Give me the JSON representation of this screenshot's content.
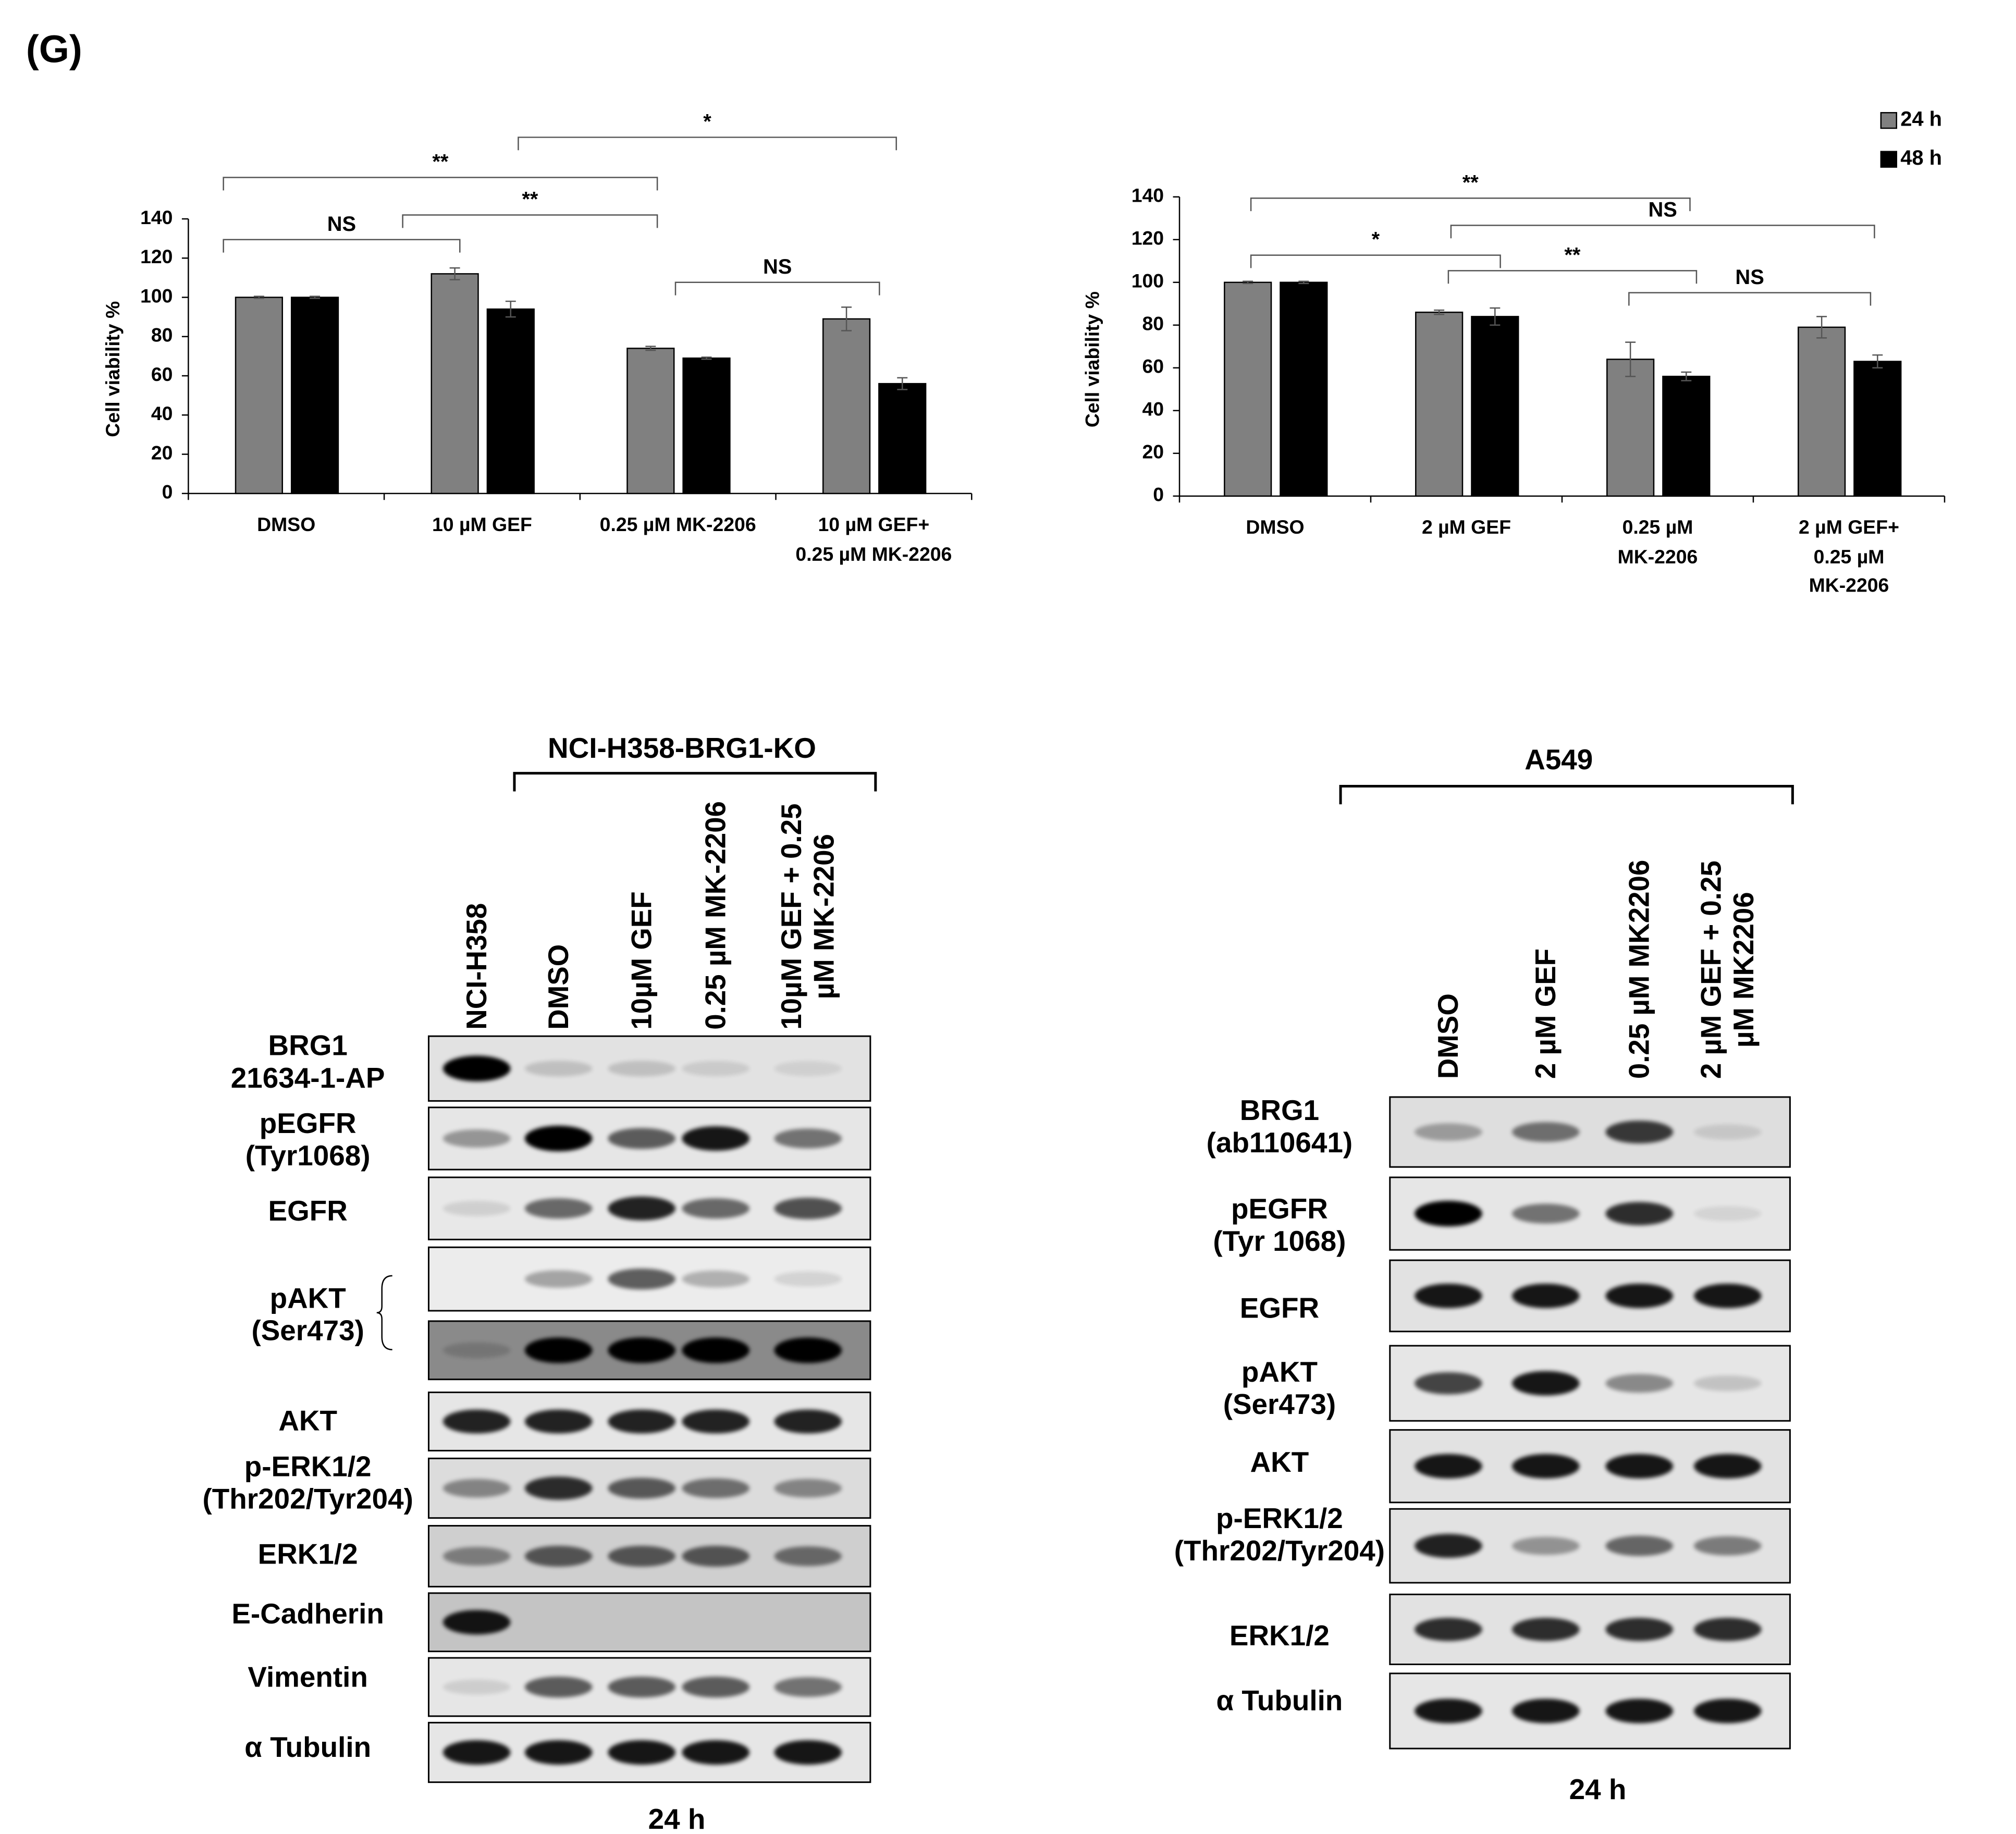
{
  "panel_label": "(G)",
  "chart_data": [
    {
      "type": "bar",
      "y_label": "Cell viability %",
      "categories": [
        "DMSO",
        "10 µM GEF",
        "0.25 µM MK-2206",
        "10 µM GEF+\n0.25 µM MK-2206"
      ],
      "series": [
        {
          "color": "#808080",
          "values": [
            100,
            112,
            74,
            89
          ],
          "errors": [
            0.5,
            3,
            1,
            6
          ]
        },
        {
          "color": "#000000",
          "values": [
            100,
            94,
            69,
            56
          ],
          "errors": [
            0.5,
            4,
            0.5,
            3
          ]
        }
      ],
      "ylim": [
        0,
        140
      ],
      "yticks": [
        0,
        20,
        40,
        60,
        80,
        100,
        120,
        140
      ],
      "legend": false,
      "annotations": [
        "**",
        "*",
        "NS",
        "**",
        "NS"
      ]
    },
    {
      "type": "bar",
      "y_label": "Cell viability %",
      "categories": [
        "DMSO",
        "2 µM GEF",
        "0.25 µM\nMK-2206",
        "2 µM GEF+\n0.25 µM\nMK-2206"
      ],
      "series": [
        {
          "name": "24 h",
          "color": "#808080",
          "values": [
            100,
            86,
            64,
            79
          ],
          "errors": [
            0.5,
            1,
            8,
            5
          ]
        },
        {
          "name": "48 h",
          "color": "#000000",
          "values": [
            100,
            84,
            56,
            63
          ],
          "errors": [
            0.5,
            4,
            2,
            3
          ]
        }
      ],
      "ylim": [
        0,
        140
      ],
      "yticks": [
        0,
        20,
        40,
        60,
        80,
        100,
        120,
        140
      ],
      "legend": "top-right",
      "annotations": [
        "**",
        "NS",
        "*",
        "**",
        "NS"
      ]
    }
  ],
  "blots": [
    {
      "title": "NCI-H358-BRG1-KO",
      "lanes": [
        "NCI-H358",
        "DMSO",
        "10µM GEF",
        "0.25 µM MK-2206",
        "10µM GEF + 0.25\nµM MK-2206"
      ],
      "rows": [
        "BRG1\n21634-1-AP",
        "pEGFR\n(Tyr1068)",
        "EGFR",
        "pAKT\n(Ser473)",
        "AKT",
        "p-ERK1/2\n(Thr202/Tyr204)",
        "ERK1/2",
        "E-Cadherin",
        "Vimentin",
        "α Tubulin"
      ],
      "time": "24 h"
    },
    {
      "title": "A549",
      "lanes": [
        "DMSO",
        "2 µM GEF",
        "0.25 µM MK2206",
        "2 µM GEF + 0.25\nµM MK2206"
      ],
      "rows": [
        "BRG1\n(ab110641)",
        "pEGFR\n(Tyr 1068)",
        "EGFR",
        "pAKT\n(Ser473)",
        "AKT",
        "p-ERK1/2\n(Thr202/Tyr204)",
        "ERK1/2",
        "α Tubulin"
      ],
      "time": "24 h"
    }
  ]
}
